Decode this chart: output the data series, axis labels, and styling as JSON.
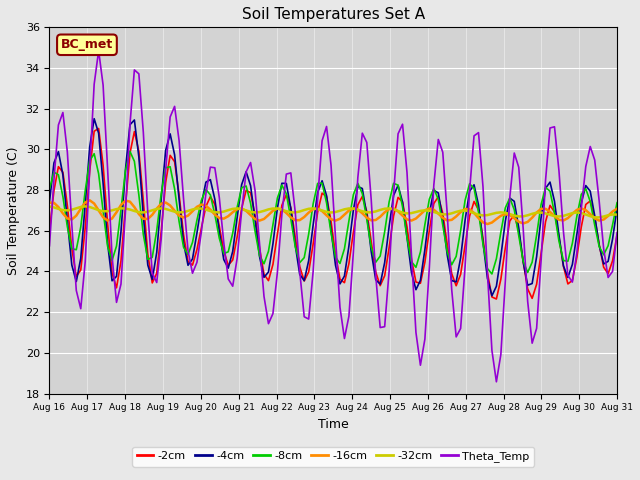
{
  "title": "Soil Temperatures Set A",
  "xlabel": "Time",
  "ylabel": "Soil Temperature (C)",
  "ylim": [
    18,
    36
  ],
  "yticks": [
    18,
    20,
    22,
    24,
    26,
    28,
    30,
    32,
    34,
    36
  ],
  "annotation": "BC_met",
  "annotation_color": "#8B0000",
  "annotation_bg": "#FFFF99",
  "bg_color": "#E8E8E8",
  "plot_bg": "#D3D3D3",
  "series_order": [
    "-2cm",
    "-4cm",
    "-8cm",
    "-16cm",
    "-32cm",
    "Theta_Temp"
  ],
  "series": {
    "-2cm": {
      "color": "#FF0000",
      "lw": 1.2
    },
    "-4cm": {
      "color": "#00008B",
      "lw": 1.2
    },
    "-8cm": {
      "color": "#00CC00",
      "lw": 1.2
    },
    "-16cm": {
      "color": "#FF8C00",
      "lw": 1.8
    },
    "-32cm": {
      "color": "#CCCC00",
      "lw": 1.8
    },
    "Theta_Temp": {
      "color": "#9400D3",
      "lw": 1.2
    }
  },
  "x_tick_positions": [
    0,
    1,
    2,
    3,
    4,
    5,
    6,
    7,
    8,
    9,
    10,
    11,
    12,
    13,
    14,
    15
  ],
  "x_labels": [
    "Aug 16",
    "Aug 17",
    "Aug 18",
    "Aug 19",
    "Aug 20",
    "Aug 21",
    "Aug 22",
    "Aug 23",
    "Aug 24",
    "Aug 25",
    "Aug 26",
    "Aug 27",
    "Aug 28",
    "Aug 29",
    "Aug 30",
    "Aug 31"
  ],
  "n_days": 16,
  "pts_per_day": 8,
  "amplitudes": {
    "-2cm": [
      2.5,
      3.8,
      4.0,
      3.5,
      1.5,
      2.0,
      2.2,
      2.2,
      2.2,
      2.2,
      2.2,
      2.2,
      2.2,
      2.2,
      2.0,
      1.8
    ],
    "-4cm": [
      3.0,
      4.0,
      4.2,
      3.8,
      2.0,
      2.5,
      2.5,
      2.5,
      2.5,
      2.5,
      2.5,
      2.5,
      2.5,
      2.5,
      2.2,
      2.0
    ],
    "-8cm": [
      1.8,
      2.5,
      2.8,
      2.5,
      1.5,
      1.8,
      2.0,
      2.0,
      2.0,
      2.0,
      2.0,
      2.0,
      2.0,
      2.0,
      1.8,
      1.5
    ],
    "-16cm": [
      0.4,
      0.5,
      0.5,
      0.4,
      0.3,
      0.3,
      0.3,
      0.3,
      0.3,
      0.3,
      0.3,
      0.3,
      0.3,
      0.3,
      0.3,
      0.3
    ],
    "-32cm": [
      0.1,
      0.1,
      0.1,
      0.1,
      0.1,
      0.1,
      0.1,
      0.1,
      0.1,
      0.1,
      0.1,
      0.1,
      0.1,
      0.1,
      0.1,
      0.1
    ],
    "Theta_Temp": [
      4.0,
      6.5,
      6.0,
      5.0,
      2.5,
      3.5,
      3.5,
      5.0,
      5.0,
      5.5,
      5.5,
      5.5,
      5.5,
      5.5,
      3.0,
      3.5
    ]
  },
  "means": {
    "-2cm": [
      26.0,
      27.5,
      27.0,
      27.0,
      26.0,
      26.2,
      25.5,
      25.8,
      25.5,
      25.5,
      25.5,
      25.5,
      24.5,
      25.0,
      25.5,
      25.8
    ],
    "-4cm": [
      26.5,
      27.5,
      27.5,
      27.5,
      26.5,
      26.5,
      26.0,
      26.0,
      25.8,
      25.8,
      25.5,
      26.0,
      25.0,
      26.0,
      26.0,
      26.5
    ],
    "-8cm": [
      27.0,
      27.3,
      27.2,
      27.0,
      26.5,
      26.5,
      26.2,
      26.5,
      26.3,
      26.5,
      26.0,
      26.5,
      25.5,
      26.2,
      26.3,
      26.5
    ],
    "-16cm": [
      27.0,
      27.0,
      27.0,
      27.0,
      27.0,
      26.8,
      26.8,
      26.8,
      26.8,
      26.8,
      26.8,
      26.8,
      26.5,
      26.8,
      26.8,
      26.8
    ],
    "-32cm": [
      27.1,
      27.1,
      27.0,
      27.0,
      27.0,
      27.0,
      27.0,
      27.0,
      27.0,
      27.0,
      26.9,
      26.9,
      26.8,
      26.8,
      26.8,
      26.7
    ],
    "Theta_Temp": [
      26.5,
      28.5,
      28.5,
      28.5,
      26.5,
      26.5,
      24.5,
      26.5,
      25.5,
      26.5,
      24.5,
      26.5,
      23.5,
      26.5,
      27.0,
      27.0
    ]
  },
  "phase_shift": {
    "-2cm": 0.0,
    "-4cm": 0.05,
    "-8cm": 0.1,
    "-16cm": 0.2,
    "-32cm": 0.3,
    "Theta_Temp": -0.05
  }
}
